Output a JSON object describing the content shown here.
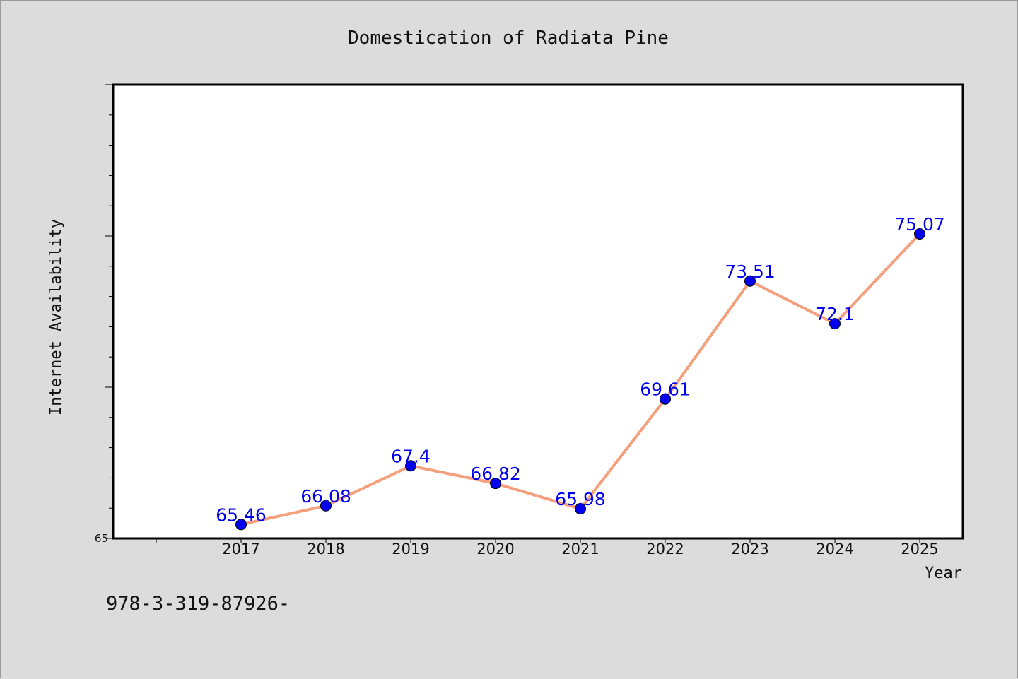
{
  "chart_data": {
    "type": "line",
    "title": "Domestication of Radiata Pine",
    "xlabel": "Year",
    "ylabel": "Internet Availability",
    "categories": [
      "2017",
      "2018",
      "2019",
      "2020",
      "2021",
      "2022",
      "2023",
      "2024",
      "2025"
    ],
    "series": [
      {
        "values": [
          65.46,
          66.08,
          67.4,
          66.82,
          65.98,
          69.61,
          73.51,
          72.1,
          75.07
        ],
        "data_labels": [
          "65.46",
          "66.08",
          "67.4",
          "66.82",
          "65.98",
          "69.61",
          "73.51",
          "72.1",
          "75.07"
        ],
        "line_color": "#f4a07c",
        "marker_color": "#0000ee"
      }
    ],
    "y_tick_labels": [
      "65"
    ],
    "ylim": [
      65,
      80
    ],
    "grid": false,
    "legend": "none"
  },
  "footnote": "978-3-319-87926-"
}
